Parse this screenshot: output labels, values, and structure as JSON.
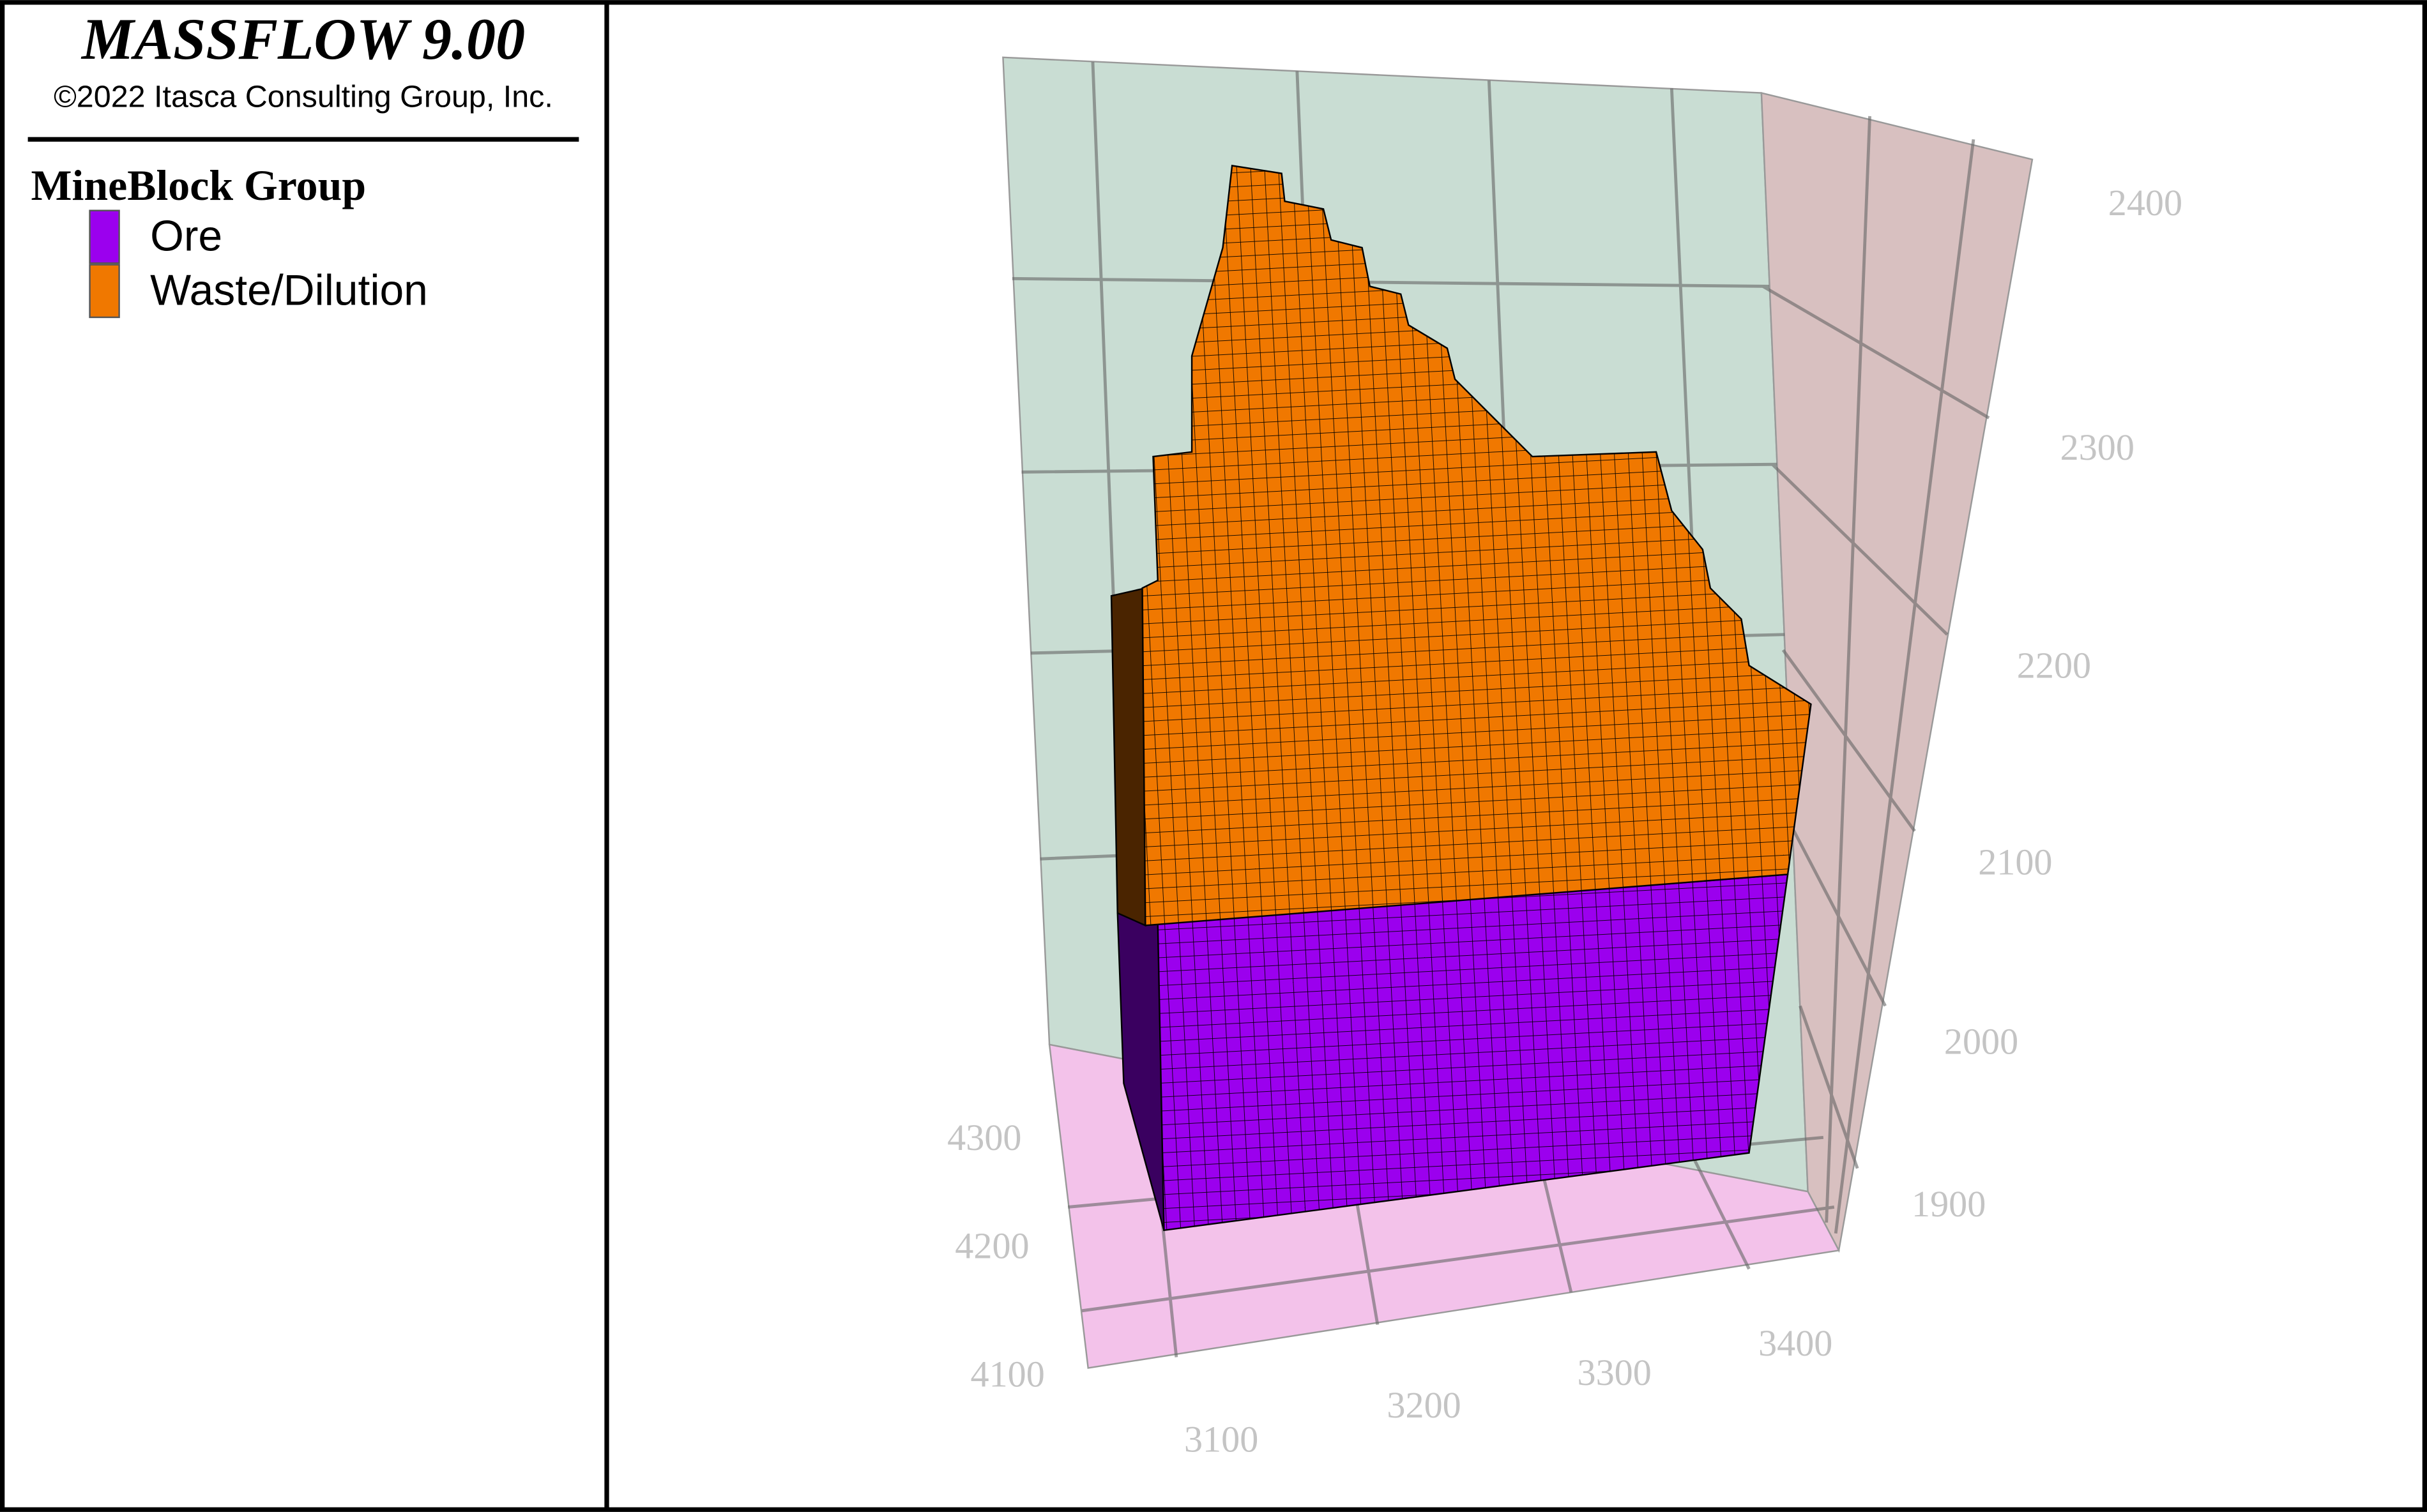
{
  "header": {
    "title": "MASSFLOW 9.00",
    "copyright": "©2022 Itasca Consulting Group, Inc."
  },
  "legend": {
    "title": "MineBlock Group",
    "items": [
      {
        "label": "Ore",
        "color": "#9b00ee"
      },
      {
        "label": "Waste/Dilution",
        "color": "#f07800"
      }
    ]
  },
  "axes": {
    "x_ticks": [
      3100,
      3200,
      3300,
      3400
    ],
    "y_ticks": [
      4100,
      4200,
      4300
    ],
    "z_ticks": [
      1900,
      2000,
      2100,
      2200,
      2300,
      2400
    ]
  }
}
